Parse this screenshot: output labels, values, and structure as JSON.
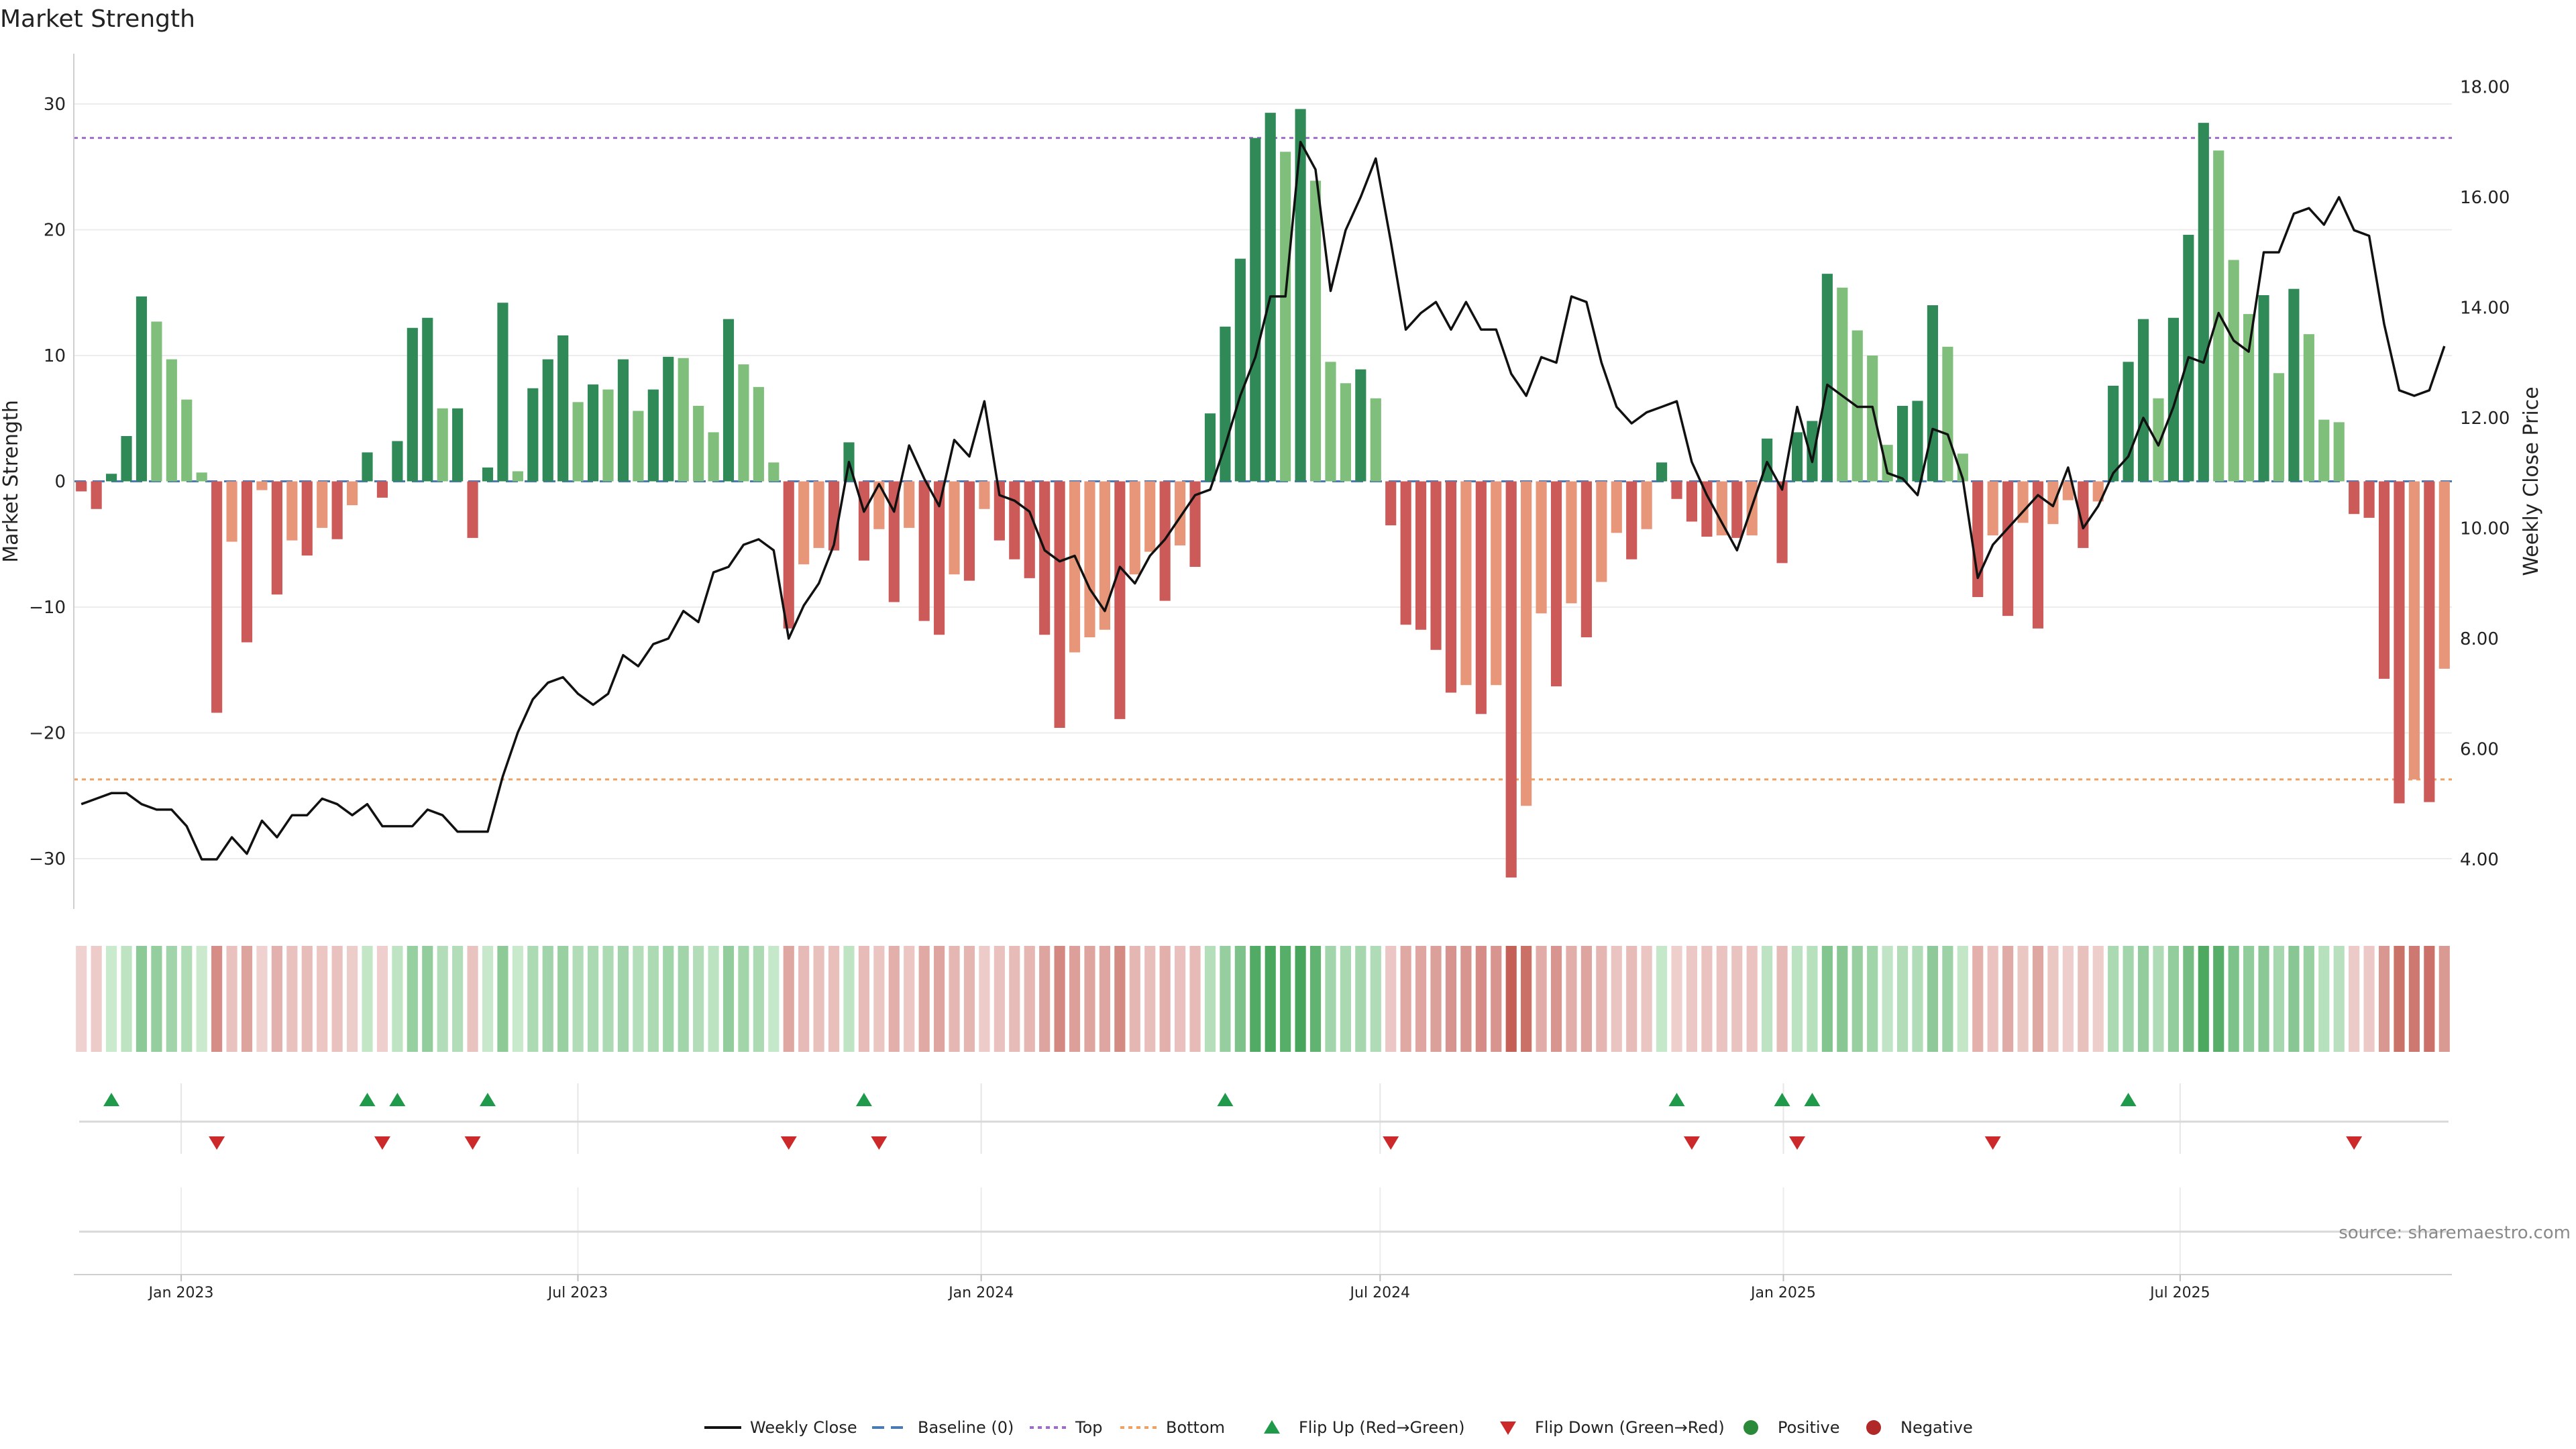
{
  "chart_data": {
    "type": "bar",
    "title": "Market Strength",
    "ylabel_left": "Market Strength",
    "ylabel_right": "Weekly Close Price",
    "left_ylim": [
      -34,
      34
    ],
    "right_ylim": [
      3.1,
      18.6
    ],
    "left_ticks": [
      30,
      20,
      10,
      0,
      -10,
      -20,
      -30
    ],
    "left_tick_labels": [
      "30",
      "20",
      "10",
      "0",
      "−10",
      "−20",
      "−30"
    ],
    "right_ticks": [
      18,
      16,
      14,
      12,
      10,
      8,
      6,
      4
    ],
    "right_tick_labels": [
      "18.00",
      "16.00",
      "14.00",
      "12.00",
      "10.00",
      "8.00",
      "6.00",
      "4.00"
    ],
    "x_start": "2022-11-13",
    "x_end": "2025-11-02",
    "x_ticks": [
      "2023-01-01",
      "2023-07-01",
      "2024-01-01",
      "2024-07-01",
      "2025-01-01",
      "2025-07-01"
    ],
    "x_tick_labels": [
      "Jan 2023",
      "Jul 2023",
      "Jan 2024",
      "Jul 2024",
      "Jan 2025",
      "Jul 2025"
    ],
    "top_threshold": 27.3,
    "bottom_threshold": -23.7,
    "grid": true,
    "legend_position": "bottom",
    "strength": [
      -0.8,
      -2.2,
      0.6,
      3.6,
      14.7,
      12.7,
      9.7,
      6.5,
      0.7,
      -18.4,
      -4.8,
      -12.8,
      -0.7,
      -9.0,
      -4.7,
      -5.9,
      -3.7,
      -4.6,
      -1.9,
      2.3,
      -1.3,
      3.2,
      12.2,
      13.0,
      5.8,
      5.8,
      -4.5,
      1.1,
      14.2,
      0.8,
      7.4,
      9.7,
      11.6,
      6.3,
      7.7,
      7.3,
      9.7,
      5.6,
      7.3,
      9.9,
      9.8,
      6.0,
      3.9,
      12.9,
      9.3,
      7.5,
      1.5,
      -11.7,
      -6.6,
      -5.3,
      -5.5,
      3.1,
      -6.3,
      -3.8,
      -9.6,
      -3.7,
      -11.1,
      -12.2,
      -7.4,
      -7.9,
      -2.2,
      -4.7,
      -6.2,
      -7.7,
      -12.2,
      -19.6,
      -13.6,
      -12.4,
      -11.8,
      -18.9,
      -7.4,
      -5.6,
      -9.5,
      -5.1,
      -6.8,
      5.4,
      12.3,
      17.7,
      27.3,
      29.3,
      26.2,
      29.6,
      23.9,
      9.5,
      7.8,
      8.9,
      6.6,
      -3.5,
      -11.4,
      -11.8,
      -13.4,
      -16.8,
      -16.2,
      -18.5,
      -16.2,
      -31.5,
      -25.8,
      -10.5,
      -16.3,
      -9.7,
      -12.4,
      -8.0,
      -4.1,
      -6.2,
      -3.8,
      1.5,
      -1.4,
      -3.2,
      -4.4,
      -4.3,
      -4.5,
      -4.3,
      3.4,
      -6.5,
      3.9,
      4.8,
      16.5,
      15.4,
      12.0,
      10.0,
      2.9,
      6.0,
      6.4,
      14.0,
      10.7,
      2.2,
      -9.2,
      -4.3,
      -10.7,
      -3.3,
      -11.7,
      -3.4,
      -1.5,
      -5.3,
      -1.6,
      7.6,
      9.5,
      12.9,
      6.6,
      13.0,
      19.6,
      28.5,
      26.3,
      17.6,
      13.3,
      14.8,
      8.6,
      15.3,
      11.7,
      4.9,
      4.7,
      -2.6,
      -2.9,
      -15.7,
      -25.6,
      -23.7,
      -25.5,
      -14.9
    ],
    "weekly_close": [
      5.0,
      5.1,
      5.2,
      5.2,
      5.0,
      4.9,
      4.9,
      4.6,
      4.0,
      4.0,
      4.4,
      4.1,
      4.7,
      4.4,
      4.8,
      4.8,
      5.1,
      5.0,
      4.8,
      5.0,
      4.6,
      4.6,
      4.6,
      4.9,
      4.8,
      4.5,
      4.5,
      4.5,
      5.5,
      6.3,
      6.9,
      7.2,
      7.3,
      7.0,
      6.8,
      7.0,
      7.7,
      7.5,
      7.9,
      8.0,
      8.5,
      8.3,
      9.2,
      9.3,
      9.7,
      9.8,
      9.6,
      8.0,
      8.6,
      9.0,
      9.7,
      11.2,
      10.3,
      10.8,
      10.3,
      11.5,
      10.9,
      10.4,
      11.6,
      11.3,
      12.3,
      10.6,
      10.5,
      10.3,
      9.6,
      9.4,
      9.5,
      8.9,
      8.5,
      9.3,
      9.0,
      9.5,
      9.8,
      10.2,
      10.6,
      10.7,
      11.5,
      12.4,
      13.1,
      14.2,
      14.2,
      17.0,
      16.5,
      14.3,
      15.4,
      16.0,
      16.7,
      15.2,
      13.6,
      13.9,
      14.1,
      13.6,
      14.1,
      13.6,
      13.6,
      12.8,
      12.4,
      13.1,
      13.0,
      14.2,
      14.1,
      13.0,
      12.2,
      11.9,
      12.1,
      12.2,
      12.3,
      11.2,
      10.6,
      10.1,
      9.6,
      10.4,
      11.2,
      10.7,
      12.2,
      11.2,
      12.6,
      12.4,
      12.2,
      12.2,
      11.0,
      10.9,
      10.6,
      11.8,
      11.7,
      10.9,
      9.1,
      9.7,
      10.0,
      10.3,
      10.6,
      10.4,
      11.1,
      10.0,
      10.4,
      11.0,
      11.3,
      12.0,
      11.5,
      12.2,
      13.1,
      13.0,
      13.9,
      13.4,
      13.2,
      15.0,
      15.0,
      15.7,
      15.8,
      15.5,
      16.0,
      15.4,
      15.3,
      13.7,
      12.5,
      12.4,
      12.5,
      13.3
    ],
    "series": [
      {
        "name": "Weekly Close",
        "color": "#111111"
      },
      {
        "name": "Baseline (0)",
        "color": "#4a7ab5"
      },
      {
        "name": "Top",
        "color": "#a06cc9"
      },
      {
        "name": "Bottom",
        "color": "#f0a060"
      },
      {
        "name": "Flip Up (Red→Green)",
        "color": "#1e9a4a"
      },
      {
        "name": "Flip Down (Green→Red)",
        "color": "#cc2a2a"
      },
      {
        "name": "Positive",
        "color": "#2a8a3a"
      },
      {
        "name": "Negative",
        "color": "#b02828"
      }
    ],
    "flip_up_weeks": [
      2,
      19,
      21,
      27,
      52,
      76,
      106,
      113,
      115,
      136
    ],
    "flip_down_weeks": [
      9,
      20,
      26,
      47,
      53,
      87,
      107,
      114,
      127,
      151
    ],
    "source": "source: sharemaestro.com"
  }
}
